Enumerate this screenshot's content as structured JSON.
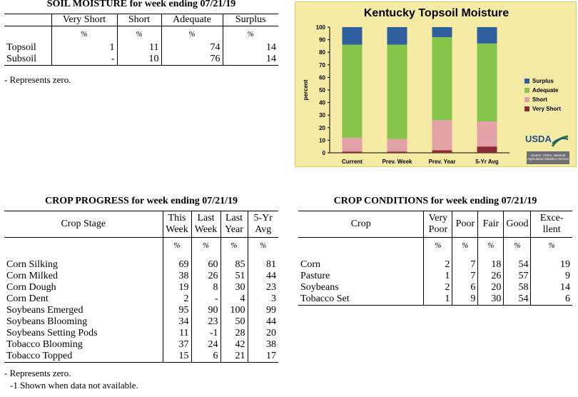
{
  "soil_moisture": {
    "title": "SOIL MOISTURE for week ending 07/21/19",
    "columns": [
      "Very Short",
      "Short",
      "Adequate",
      "Surplus"
    ],
    "unit": "%",
    "rows": [
      {
        "label": "Topsoil",
        "values": [
          "1",
          "11",
          "74",
          "14"
        ]
      },
      {
        "label": "Subsoil",
        "values": [
          "-",
          "10",
          "76",
          "14"
        ]
      }
    ],
    "note": "- Represents zero."
  },
  "crop_progress": {
    "title": "CROP PROGRESS for week ending 07/21/19",
    "header": {
      "stage": "Crop Stage",
      "this_week": [
        "This",
        "Week"
      ],
      "last_week": [
        "Last",
        "Week"
      ],
      "last_year": [
        "Last",
        "Year"
      ],
      "avg": [
        "5-Yr",
        "Avg"
      ]
    },
    "unit": "%",
    "rows": [
      {
        "label": "Corn Silking",
        "values": [
          "69",
          "60",
          "85",
          "81"
        ]
      },
      {
        "label": "Corn Milked",
        "values": [
          "38",
          "26",
          "51",
          "44"
        ]
      },
      {
        "label": "Corn Dough",
        "values": [
          "19",
          "8",
          "30",
          "23"
        ]
      },
      {
        "label": "Corn Dent",
        "values": [
          "2",
          "-",
          "4",
          "3"
        ]
      },
      {
        "label": "Soybeans Emerged",
        "values": [
          "95",
          "90",
          "100",
          "99"
        ]
      },
      {
        "label": "Soybeans Blooming",
        "values": [
          "34",
          "23",
          "50",
          "44"
        ]
      },
      {
        "label": "Soybeans Setting Pods",
        "values": [
          "11",
          "-1",
          "28",
          "20"
        ]
      },
      {
        "label": "Tobacco Blooming",
        "values": [
          "37",
          "24",
          "42",
          "38"
        ]
      },
      {
        "label": "Tobacco Topped",
        "values": [
          "15",
          "6",
          "21",
          "17"
        ]
      }
    ],
    "notes": [
      "- Represents zero.",
      "-1 Shown when data not available."
    ]
  },
  "crop_conditions": {
    "title": "CROP CONDITIONS for week ending 07/21/19",
    "header": {
      "crop": "Crop",
      "very_poor": [
        "Very",
        "Poor"
      ],
      "poor": "Poor",
      "fair": "Fair",
      "good": "Good",
      "excellent": [
        "Exce-",
        "llent"
      ]
    },
    "unit": "%",
    "rows": [
      {
        "label": "Corn",
        "values": [
          "2",
          "7",
          "18",
          "54",
          "19"
        ]
      },
      {
        "label": "Pasture",
        "values": [
          "1",
          "7",
          "26",
          "57",
          "9"
        ]
      },
      {
        "label": "Soybeans",
        "values": [
          "2",
          "6",
          "20",
          "58",
          "14"
        ]
      },
      {
        "label": "Tobacco Set",
        "values": [
          "1",
          "9",
          "30",
          "54",
          "6"
        ]
      }
    ]
  },
  "chart_data": {
    "type": "bar",
    "stacked": true,
    "title": "Kentucky Topsoil Moisture",
    "ylabel": "percent",
    "xlabel": "",
    "ylim": [
      0,
      100
    ],
    "yticks": [
      0,
      10,
      20,
      30,
      40,
      50,
      60,
      70,
      80,
      90,
      100
    ],
    "categories": [
      "Current",
      "Prev. Week",
      "Prev. Year",
      "5-Yr Avg"
    ],
    "series": [
      {
        "name": "Very Short",
        "values": [
          1,
          1,
          2,
          5
        ],
        "color": "#8b2b35"
      },
      {
        "name": "Short",
        "values": [
          11,
          10,
          24,
          20
        ],
        "color": "#e3a2a8"
      },
      {
        "name": "Adequate",
        "values": [
          74,
          75,
          66,
          62
        ],
        "color": "#86c44a"
      },
      {
        "name": "Surplus",
        "values": [
          14,
          14,
          8,
          13
        ],
        "color": "#2f5f9e"
      }
    ],
    "legend_order": [
      "Surplus",
      "Adequate",
      "Short",
      "Very Short"
    ],
    "legend_position": "right",
    "grid": false,
    "logo": {
      "text": "USDA",
      "source": "Source: USDA, National Agricultural Statistics Service"
    }
  }
}
